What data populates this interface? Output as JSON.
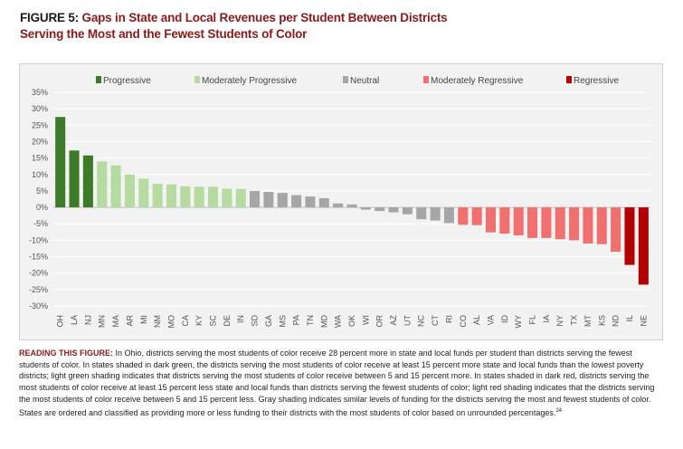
{
  "figure": {
    "label": "FIGURE 5:",
    "title_line1": "Gaps in State and Local Revenues per Student Between Districts",
    "title_line2": "Serving the Most and the Fewest Students of Color"
  },
  "note": {
    "lead": "READING THIS FIGURE:",
    "body": " In Ohio, districts serving the most students of color receive 28 percent more in state and local funds per student than districts serving the fewest students of color. In states shaded in dark green, the districts serving the most students of color receive at least 15 percent more state and local funds than the lowest poverty districts; light green shading indicates that districts serving the most students of color receive between 5 and 15 percent more. In states shaded in dark red, districts serving the most students of color receive at least 15 percent less state and local funds than districts serving the fewest students of color; light red shading indicates that the districts serving the most students of color receive between 5 and 15 percent less. Gray shading indicates similar levels of funding for the districts serving the most and fewest students of color. States are ordered and classified as providing more or less funding to their districts with the most students of color based on unrounded percentages.",
    "footnote": "24"
  },
  "colors": {
    "Progressive": "#3d7a2a",
    "Moderately Progressive": "#b5dba0",
    "Neutral": "#a6a6a6",
    "Moderately Regressive": "#f07070",
    "Regressive": "#b30000"
  },
  "chart_data": {
    "type": "bar",
    "categories": [
      "OH",
      "LA",
      "NJ",
      "MN",
      "MA",
      "AR",
      "MI",
      "NM",
      "MO",
      "CA",
      "KY",
      "SC",
      "DE",
      "IN",
      "SD",
      "GA",
      "MS",
      "PA",
      "TN",
      "MD",
      "WA",
      "OK",
      "WI",
      "OR",
      "AZ",
      "UT",
      "NC",
      "CT",
      "RI",
      "CO",
      "AL",
      "VA",
      "ID",
      "WY",
      "FL",
      "IA",
      "NY",
      "TX",
      "MT",
      "KS",
      "ND",
      "IL",
      "NE"
    ],
    "values": [
      27.5,
      17.3,
      15.8,
      14.0,
      12.8,
      10.0,
      8.7,
      7.2,
      7.0,
      6.4,
      6.3,
      6.3,
      5.7,
      5.6,
      5.0,
      4.7,
      4.4,
      3.7,
      3.3,
      2.8,
      1.2,
      0.9,
      -0.7,
      -1.1,
      -1.5,
      -2.1,
      -3.6,
      -4.0,
      -4.8,
      -5.3,
      -5.4,
      -7.6,
      -8.0,
      -8.5,
      -9.3,
      -9.3,
      -9.7,
      -10.0,
      -11.0,
      -11.2,
      -13.5,
      -17.5,
      -23.5
    ],
    "classes": [
      "Progressive",
      "Progressive",
      "Progressive",
      "Moderately Progressive",
      "Moderately Progressive",
      "Moderately Progressive",
      "Moderately Progressive",
      "Moderately Progressive",
      "Moderately Progressive",
      "Moderately Progressive",
      "Moderately Progressive",
      "Moderately Progressive",
      "Moderately Progressive",
      "Moderately Progressive",
      "Neutral",
      "Neutral",
      "Neutral",
      "Neutral",
      "Neutral",
      "Neutral",
      "Neutral",
      "Neutral",
      "Neutral",
      "Neutral",
      "Neutral",
      "Neutral",
      "Neutral",
      "Neutral",
      "Neutral",
      "Moderately Regressive",
      "Moderately Regressive",
      "Moderately Regressive",
      "Moderately Regressive",
      "Moderately Regressive",
      "Moderately Regressive",
      "Moderately Regressive",
      "Moderately Regressive",
      "Moderately Regressive",
      "Moderately Regressive",
      "Moderately Regressive",
      "Moderately Regressive",
      "Regressive",
      "Regressive"
    ],
    "legend": [
      "Progressive",
      "Moderately Progressive",
      "Neutral",
      "Moderately Regressive",
      "Regressive"
    ],
    "legend_position": "top",
    "y_ticks": [
      "35%",
      "30%",
      "25%",
      "20%",
      "15%",
      "10%",
      "5%",
      "0%",
      "-5%",
      "-10%",
      "-15%",
      "-20%",
      "-25%",
      "-30%"
    ],
    "ylim": [
      -30,
      35
    ],
    "grid": true,
    "title": "",
    "xlabel": "",
    "ylabel": ""
  }
}
